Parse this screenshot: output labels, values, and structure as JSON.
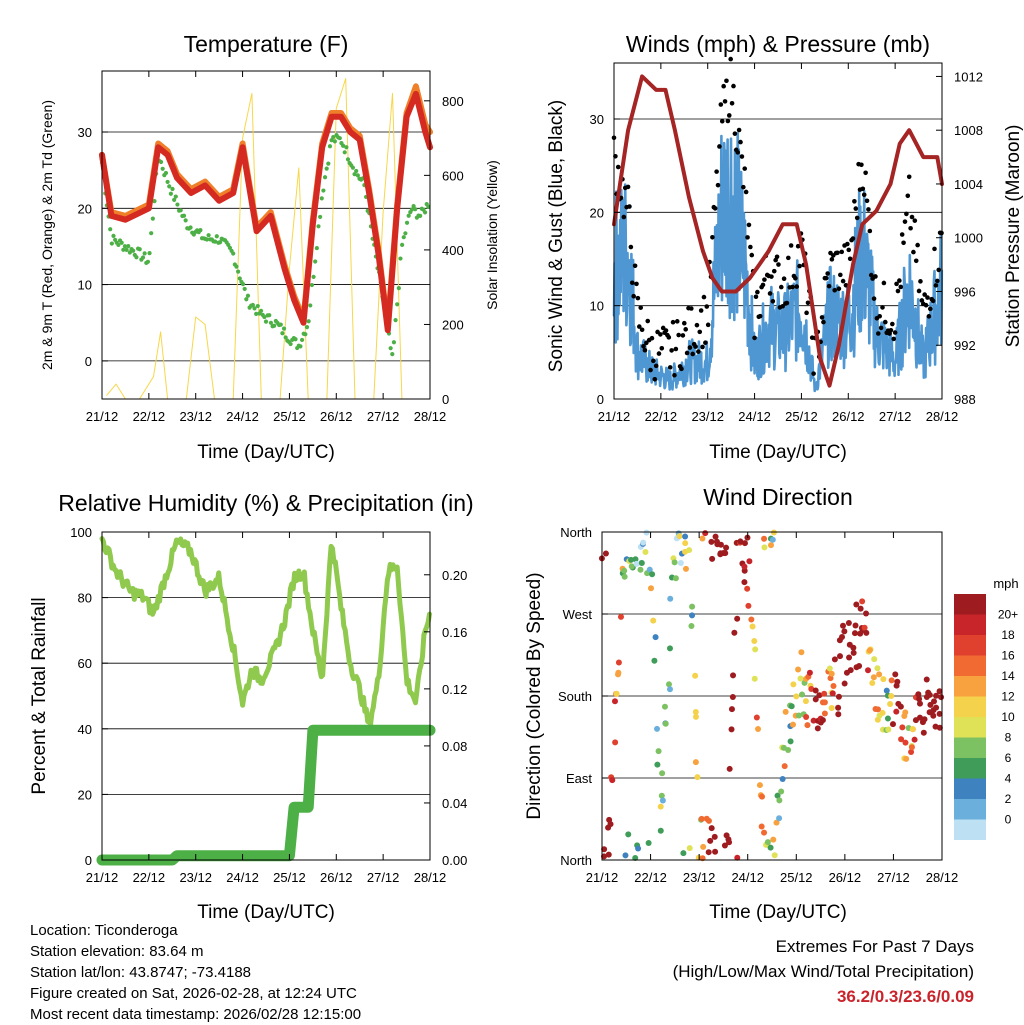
{
  "colors": {
    "red": "#d42a22",
    "orange": "#f07f2a",
    "green": "#4cb046",
    "yellow": "#f7d74a",
    "blue": "#4f97d2",
    "black": "#000000",
    "maroon": "#a52424",
    "lightgreen": "#8fc94e",
    "extremes": "#c9242b"
  },
  "time_ticks": [
    "21/12",
    "22/12",
    "23/12",
    "24/12",
    "25/12",
    "26/12",
    "27/12",
    "28/12"
  ],
  "charts": {
    "temperature": {
      "title": "Temperature (F)",
      "ylabel_left": "2m & 9m T (Red, Orange) & 2m Td (Green)",
      "ylabel_right": "Solar Insolation (Yellow)",
      "xlabel": "Time (Day/UTC)",
      "left_ticks": [
        "0",
        "10",
        "20",
        "30"
      ],
      "right_ticks": [
        "0",
        "200",
        "400",
        "600",
        "800"
      ]
    },
    "winds": {
      "title": "Winds (mph) & Pressure (mb)",
      "ylabel_left": "Sonic Wind & Gust (Blue, Black)",
      "ylabel_right": "Station Pressure (Maroon)",
      "xlabel": "Time (Day/UTC)",
      "left_ticks": [
        "0",
        "10",
        "20",
        "30"
      ],
      "right_ticks": [
        "988",
        "992",
        "996",
        "1000",
        "1004",
        "1008",
        "1012"
      ]
    },
    "humidity": {
      "title": "Relative Humidity (%) & Precipitation (in)",
      "ylabel_left": "Percent & Total Rainfall",
      "xlabel": "Time (Day/UTC)",
      "left_ticks": [
        "0",
        "20",
        "40",
        "60",
        "80",
        "100"
      ],
      "right_ticks": [
        "0.00",
        "0.04",
        "0.08",
        "0.12",
        "0.16",
        "0.20"
      ]
    },
    "direction": {
      "title": "Wind Direction",
      "ylabel_left": "Direction (Colored By Speed)",
      "xlabel": "Time (Day/UTC)",
      "dir_ticks": [
        "North",
        "East",
        "South",
        "West",
        "North"
      ],
      "legend_title": "mph",
      "legend_labels": [
        "20+",
        "18",
        "16",
        "14",
        "12",
        "10",
        "8",
        "6",
        "4",
        "2",
        "0"
      ],
      "legend_colors": [
        "#9e1c1f",
        "#c8252b",
        "#e0402e",
        "#f06a31",
        "#f7a13f",
        "#f5d24b",
        "#dfe157",
        "#7cc162",
        "#3f9d59",
        "#3e82c0",
        "#6bb0dd",
        "#bee0f3"
      ]
    }
  },
  "chart_data": [
    {
      "type": "line",
      "title": "Temperature (F)",
      "xlabel": "Time (Day/UTC)",
      "ylabel": "2m & 9m T (Red, Orange) & 2m Td (Green)",
      "ylim": [
        -5,
        38
      ],
      "y2label": "Solar Insolation (Yellow)",
      "y2lim": [
        0,
        880
      ],
      "x_categories": [
        "21/12",
        "22/12",
        "23/12",
        "24/12",
        "25/12",
        "26/12",
        "27/12",
        "28/12"
      ],
      "series": [
        {
          "name": "2m T",
          "axis": "left",
          "x": [
            0,
            0.2,
            0.5,
            1.0,
            1.2,
            1.4,
            1.6,
            1.9,
            2.2,
            2.5,
            2.8,
            3.0,
            3.3,
            3.6,
            3.9,
            4.1,
            4.3,
            4.5,
            4.7,
            4.9,
            5.1,
            5.3,
            5.5,
            5.7,
            5.9,
            6.1,
            6.3,
            6.5,
            6.7,
            6.9,
            7.0
          ],
          "y": [
            27,
            19,
            18.5,
            20,
            28,
            27,
            24,
            22,
            23,
            21,
            22,
            28,
            17,
            19,
            12,
            8,
            5,
            18,
            28,
            32,
            32,
            30,
            29,
            22,
            14,
            4,
            20,
            32,
            35,
            30,
            28
          ]
        },
        {
          "name": "9m T",
          "axis": "left",
          "x": [
            0,
            0.2,
            0.5,
            1.0,
            1.2,
            1.4,
            1.6,
            1.9,
            2.2,
            2.5,
            2.8,
            3.0,
            3.3,
            3.6,
            3.9,
            4.1,
            4.3,
            4.5,
            4.7,
            4.9,
            5.1,
            5.3,
            5.5,
            5.7,
            5.9,
            6.1,
            6.3,
            6.5,
            6.7,
            6.9,
            7.0
          ],
          "y": [
            27,
            19.5,
            19,
            20.5,
            28.5,
            27.5,
            24.5,
            22.5,
            23.5,
            21.5,
            22.5,
            28.5,
            17.5,
            19.5,
            12.5,
            8.5,
            5.5,
            18.5,
            28.5,
            32.5,
            32.5,
            30.5,
            29.5,
            22.5,
            14.5,
            4.5,
            20.5,
            32.5,
            36,
            31,
            30
          ]
        },
        {
          "name": "2m Td",
          "axis": "left",
          "x": [
            0,
            0.2,
            0.5,
            0.8,
            1.0,
            1.2,
            1.5,
            1.8,
            2.2,
            2.5,
            2.8,
            3.1,
            3.4,
            3.7,
            4.0,
            4.2,
            4.4,
            4.7,
            4.9,
            5.1,
            5.4,
            5.6,
            5.8,
            6.0,
            6.2,
            6.4,
            6.6,
            6.8,
            7.0
          ],
          "y": [
            26,
            16,
            15,
            14,
            13,
            27,
            22,
            18,
            16,
            16,
            14,
            8,
            6,
            5,
            3,
            2,
            5,
            22,
            29,
            29,
            25,
            23,
            15,
            8,
            0,
            15,
            20,
            19,
            21
          ]
        },
        {
          "name": "Solar Insolation",
          "axis": "right",
          "x": [
            0.1,
            0.3,
            0.5,
            0.8,
            1.1,
            1.25,
            1.4,
            1.8,
            2.0,
            2.2,
            2.4,
            2.8,
            3.0,
            3.2,
            3.4,
            3.8,
            4.0,
            4.2,
            4.4,
            4.8,
            5.0,
            5.2,
            5.4,
            5.8,
            6.0,
            6.2,
            6.4
          ],
          "y": [
            10,
            40,
            0,
            0,
            60,
            180,
            0,
            0,
            220,
            200,
            0,
            0,
            700,
            820,
            0,
            0,
            350,
            620,
            0,
            0,
            780,
            860,
            0,
            0,
            500,
            820,
            0
          ]
        }
      ]
    },
    {
      "type": "line",
      "title": "Winds (mph) & Pressure (mb)",
      "xlabel": "Time (Day/UTC)",
      "ylabel": "Sonic Wind & Gust (Blue, Black)",
      "ylim": [
        0,
        36
      ],
      "y2label": "Station Pressure (Maroon)",
      "y2lim": [
        988,
        1013
      ],
      "x_categories": [
        "21/12",
        "22/12",
        "23/12",
        "24/12",
        "25/12",
        "26/12",
        "27/12",
        "28/12"
      ],
      "series": [
        {
          "name": "Sonic Wind",
          "axis": "left",
          "x": [
            0,
            0.3,
            0.5,
            0.8,
            1.2,
            1.6,
            2.0,
            2.3,
            2.5,
            2.8,
            3.0,
            3.3,
            3.6,
            4.0,
            4.3,
            4.6,
            5.0,
            5.3,
            5.6,
            6.0,
            6.3,
            6.6,
            7.0
          ],
          "y": [
            14,
            16,
            5,
            3,
            2,
            4,
            4,
            20,
            22,
            14,
            4,
            8,
            7,
            10,
            1,
            9,
            8,
            16,
            7,
            4,
            12,
            4,
            12
          ]
        },
        {
          "name": "Sonic Gust",
          "axis": "left",
          "x": [
            0,
            0.3,
            0.5,
            0.8,
            1.2,
            1.6,
            2.0,
            2.3,
            2.5,
            2.8,
            3.0,
            3.3,
            3.6,
            4.0,
            4.3,
            4.6,
            5.0,
            5.3,
            5.6,
            6.0,
            6.3,
            6.6,
            7.0
          ],
          "y": [
            26,
            20,
            9,
            5,
            5,
            7,
            9,
            30,
            34,
            22,
            9,
            14,
            12,
            16,
            4,
            14,
            14,
            26,
            10,
            9,
            21,
            9,
            17
          ]
        },
        {
          "name": "Station Pressure",
          "axis": "right",
          "x": [
            0,
            0.3,
            0.6,
            0.9,
            1.1,
            1.3,
            1.6,
            1.9,
            2.1,
            2.3,
            2.6,
            2.9,
            3.1,
            3.3,
            3.6,
            3.9,
            4.1,
            4.4,
            4.6,
            4.8,
            5.1,
            5.3,
            5.6,
            5.9,
            6.1,
            6.3,
            6.6,
            6.9,
            7.0
          ],
          "y": [
            1001,
            1008,
            1012,
            1011,
            1011,
            1008,
            1003,
            999,
            997,
            996,
            996,
            997,
            998,
            999,
            1001,
            1001,
            998,
            991,
            989,
            992,
            998,
            1001,
            1002,
            1004,
            1007,
            1008,
            1006,
            1006,
            1004
          ]
        }
      ]
    },
    {
      "type": "line",
      "title": "Relative Humidity (%) & Precipitation (in)",
      "xlabel": "Time (Day/UTC)",
      "ylabel": "Percent & Total Rainfall",
      "ylim": [
        0,
        100
      ],
      "y2lim": [
        0,
        0.23
      ],
      "x_categories": [
        "21/12",
        "22/12",
        "23/12",
        "24/12",
        "25/12",
        "26/12",
        "27/12",
        "28/12"
      ],
      "series": [
        {
          "name": "Relative Humidity",
          "axis": "left",
          "x": [
            0,
            0.3,
            0.6,
            0.9,
            1.1,
            1.3,
            1.6,
            1.9,
            2.2,
            2.5,
            2.8,
            3.0,
            3.2,
            3.4,
            3.7,
            3.9,
            4.1,
            4.3,
            4.5,
            4.7,
            4.9,
            5.1,
            5.3,
            5.5,
            5.7,
            5.9,
            6.1,
            6.3,
            6.5,
            6.7,
            6.9,
            7.0
          ],
          "y": [
            98,
            88,
            82,
            80,
            75,
            84,
            97,
            94,
            82,
            86,
            65,
            48,
            58,
            55,
            64,
            73,
            86,
            88,
            70,
            55,
            98,
            77,
            60,
            52,
            41,
            55,
            88,
            90,
            55,
            48,
            70,
            75
          ]
        },
        {
          "name": "Total Precipitation",
          "axis": "right",
          "x": [
            0,
            1.5,
            1.6,
            4.0,
            4.1,
            4.4,
            4.5,
            7.0
          ],
          "y": [
            0,
            0,
            0.003,
            0.003,
            0.037,
            0.037,
            0.091,
            0.091
          ]
        }
      ]
    },
    {
      "type": "scatter",
      "title": "Wind Direction",
      "xlabel": "Time (Day/UTC)",
      "ylabel": "Direction (Colored By Speed)",
      "yticks": [
        "North",
        "East",
        "South",
        "West",
        "North"
      ],
      "color_scale": "mph",
      "x_categories": [
        "21/12",
        "22/12",
        "23/12",
        "24/12",
        "25/12",
        "26/12",
        "27/12",
        "28/12"
      ],
      "series": [
        {
          "name": "Wind direction (deg)",
          "x": [
            0.1,
            0.5,
            0.9,
            1.0,
            1.2,
            1.5,
            1.8,
            2.0,
            2.3,
            2.6,
            2.8,
            3.0,
            3.1,
            3.3,
            3.6,
            3.9,
            4.1,
            4.3,
            4.5,
            4.7,
            4.9,
            5.0,
            5.2,
            5.4,
            5.6,
            5.9,
            6.1,
            6.3,
            6.6,
            6.9
          ],
          "y": [
            0,
            355,
            350,
            345,
            20,
            345,
            350,
            30,
            0,
            10,
            350,
            320,
            290,
            15,
            25,
            180,
            200,
            170,
            160,
            180,
            200,
            230,
            240,
            260,
            180,
            160,
            190,
            110,
            170,
            160
          ],
          "speed": [
            14,
            3,
            2,
            4,
            3,
            2,
            5,
            4,
            16,
            18,
            12,
            10,
            8,
            6,
            4,
            5,
            6,
            8,
            12,
            7,
            14,
            18,
            16,
            10,
            6,
            4,
            12,
            5,
            14,
            13
          ]
        }
      ]
    }
  ],
  "info": {
    "location": "Location: Ticonderoga",
    "elevation": "Station elevation: 83.64 m",
    "latlon": "Station lat/lon: 43.8747; -73.4188",
    "created": "Figure created on Sat, 2026-02-28, at 12:24 UTC",
    "recent": "Most recent data timestamp: 2026/02/28 12:15:00"
  },
  "extremes": {
    "heading": "Extremes For Past 7 Days",
    "subheading": "(High/Low/Max Wind/Total Precipitation)",
    "values": "36.2/0.3/23.6/0.09"
  }
}
